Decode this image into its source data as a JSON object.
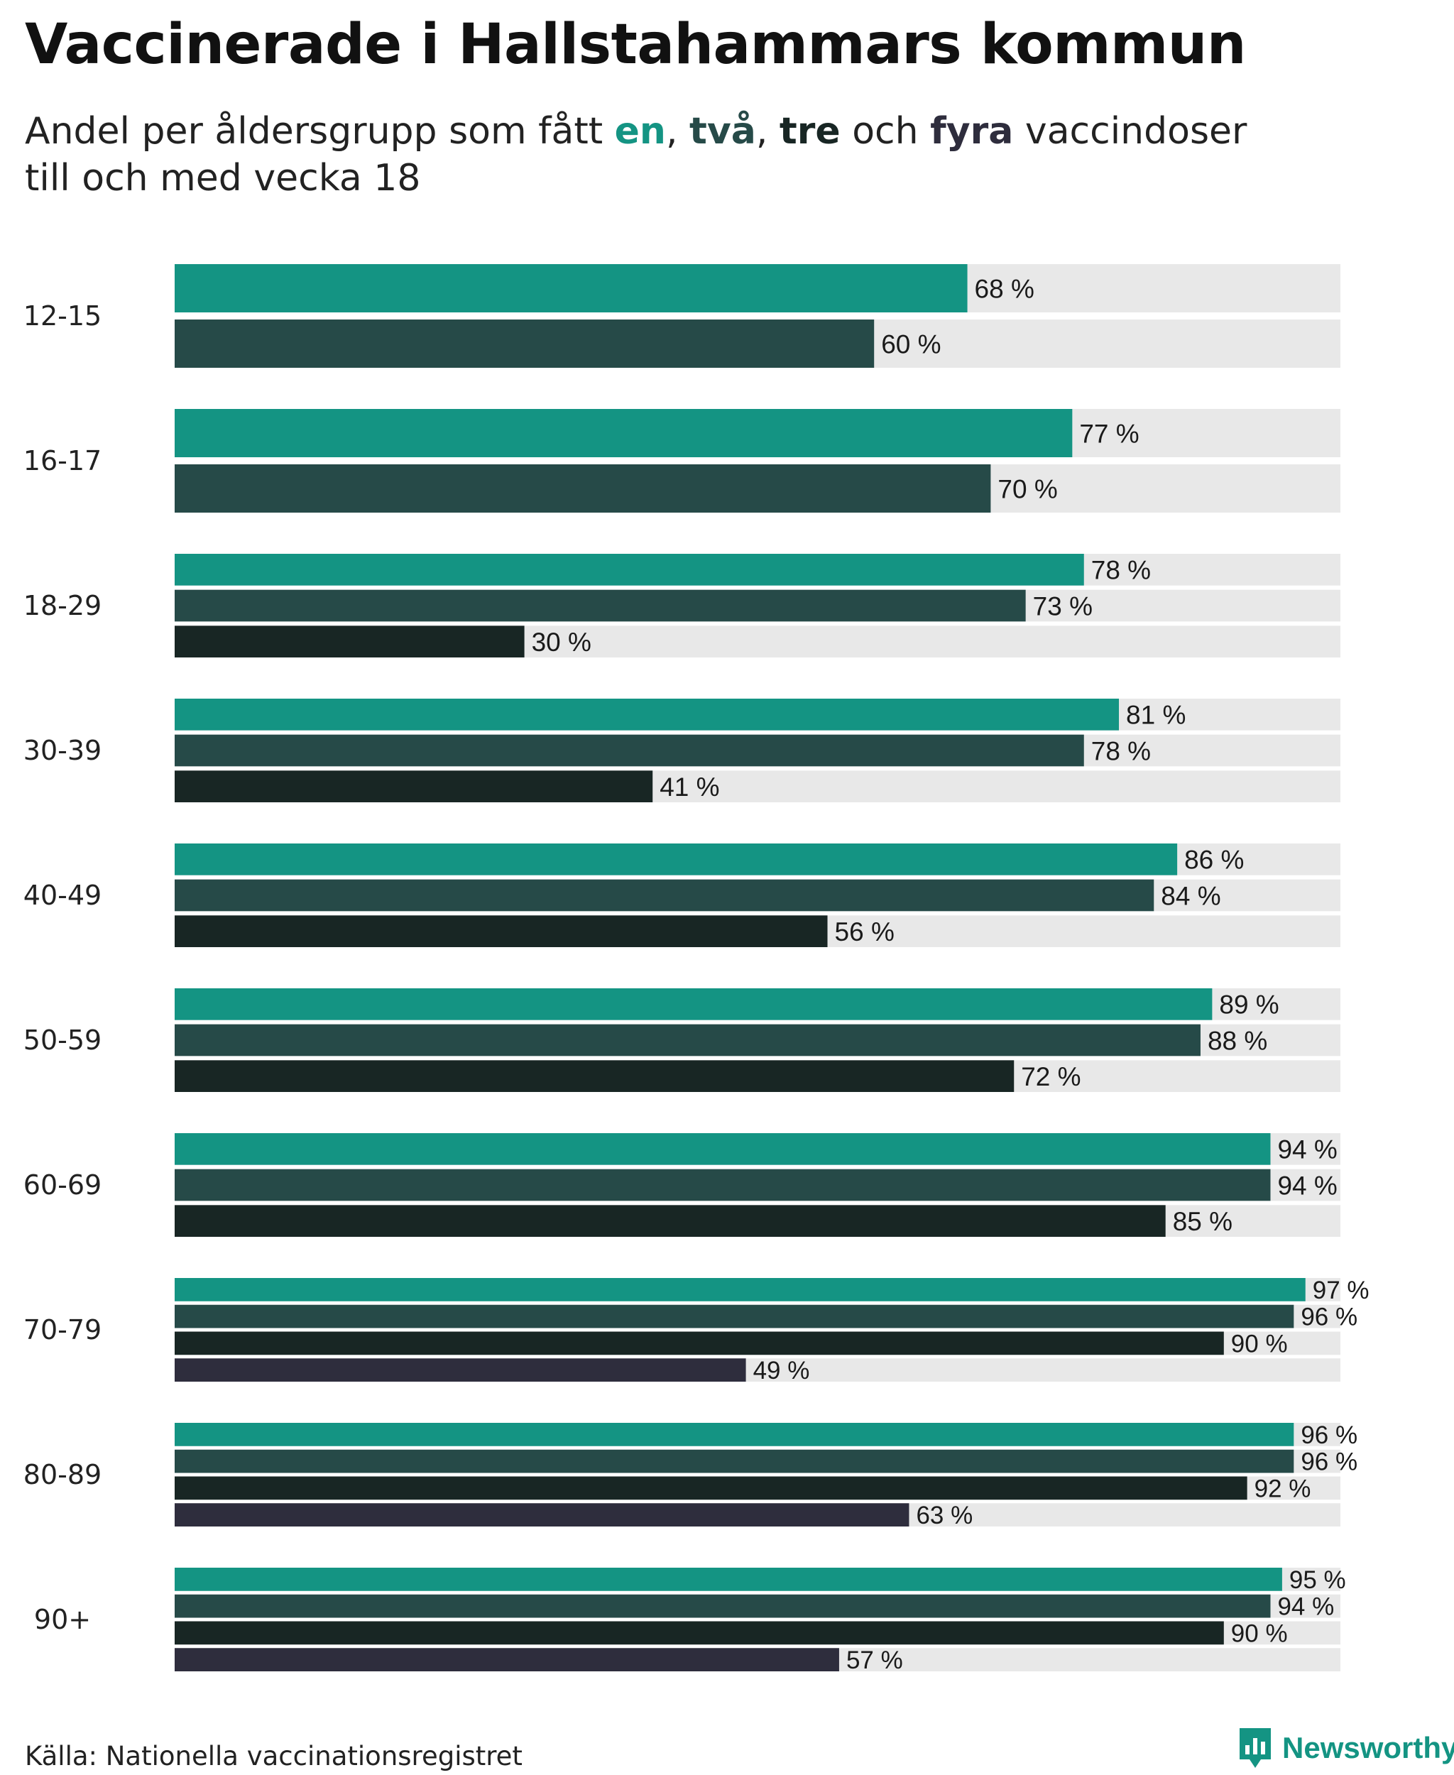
{
  "title": "Vaccinerade i Hallstahammars kommun",
  "subtitle": {
    "before": "Andel per åldersgrupp som fått ",
    "k1": "en",
    "sep1": ", ",
    "k2": "två",
    "sep2": ", ",
    "k3": "tre",
    "mid": " och ",
    "k4": "fyra",
    "after": " vaccindoser",
    "line2": "till och med vecka 18"
  },
  "colors": {
    "dose1": "#149483",
    "dose2": "#264A48",
    "dose3": "#182624",
    "dose4": "#2E2D3D",
    "track": "#E8E8E8"
  },
  "chart_data": {
    "type": "bar",
    "orientation": "horizontal",
    "title": "Vaccinerade i Hallstahammars kommun",
    "subtitle": "Andel per åldersgrupp som fått en, två, tre och fyra vaccindoser till och med vecka 18",
    "xlim": [
      0,
      100
    ],
    "unit_suffix": " %",
    "grid": false,
    "legend": "inline in subtitle",
    "series_names": [
      "en",
      "två",
      "tre",
      "fyra"
    ],
    "groups": [
      {
        "label": "12-15",
        "values": [
          68,
          60
        ]
      },
      {
        "label": "16-17",
        "values": [
          77,
          70
        ]
      },
      {
        "label": "18-29",
        "values": [
          78,
          73,
          30
        ]
      },
      {
        "label": "30-39",
        "values": [
          81,
          78,
          41
        ]
      },
      {
        "label": "40-49",
        "values": [
          86,
          84,
          56
        ]
      },
      {
        "label": "50-59",
        "values": [
          89,
          88,
          72
        ]
      },
      {
        "label": "60-69",
        "values": [
          94,
          94,
          85
        ]
      },
      {
        "label": "70-79",
        "values": [
          97,
          96,
          90,
          49
        ]
      },
      {
        "label": "80-89",
        "values": [
          96,
          96,
          92,
          63
        ]
      },
      {
        "label": "90+",
        "values": [
          95,
          94,
          90,
          57
        ]
      }
    ]
  },
  "source": "Källa: Nationella vaccinationsregistret",
  "brand": "Newsworthy"
}
